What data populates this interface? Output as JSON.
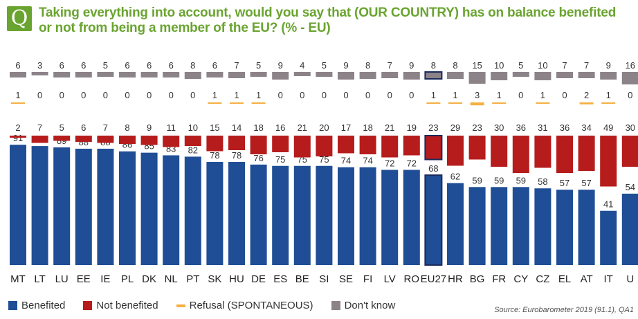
{
  "title": {
    "line1": "Taking everything into account, would you say that (OUR COUNTRY) has on balance benefited",
    "line2": "or not from being a member of the EU? (% - EU)",
    "badge": "Q"
  },
  "colors": {
    "benefited": "#1f4e96",
    "not_benefited": "#b71c1c",
    "refusal": "#f5b041",
    "dont_know": "#8c8389",
    "title": "#6aa430",
    "eu_outline": "#1a2a5c"
  },
  "chart_data": {
    "type": "bar",
    "stacked": true,
    "categories": [
      "MT",
      "LT",
      "LU",
      "EE",
      "IE",
      "PL",
      "DK",
      "NL",
      "PT",
      "SK",
      "HU",
      "DE",
      "ES",
      "BE",
      "SI",
      "SE",
      "FI",
      "LV",
      "RO",
      "EU27",
      "HR",
      "BG",
      "FR",
      "CY",
      "CZ",
      "EL",
      "AT",
      "IT",
      "U"
    ],
    "highlight": "EU27",
    "series": [
      {
        "name": "Benefited",
        "key": "benefited",
        "values": [
          91,
          90,
          89,
          88,
          88,
          86,
          85,
          83,
          82,
          78,
          78,
          76,
          75,
          75,
          75,
          74,
          74,
          72,
          72,
          68,
          62,
          59,
          59,
          59,
          58,
          57,
          57,
          41,
          54
        ]
      },
      {
        "name": "Not benefited",
        "key": "not_benefited",
        "values": [
          2,
          7,
          5,
          6,
          7,
          8,
          9,
          11,
          10,
          15,
          14,
          18,
          16,
          21,
          20,
          17,
          18,
          21,
          19,
          23,
          29,
          23,
          30,
          36,
          31,
          36,
          34,
          49,
          30
        ]
      },
      {
        "name": "Refusal (SPONTANEOUS)",
        "key": "refusal",
        "values": [
          1,
          0,
          0,
          0,
          0,
          0,
          0,
          0,
          0,
          1,
          1,
          1,
          0,
          0,
          0,
          0,
          0,
          0,
          0,
          1,
          1,
          3,
          1,
          0,
          1,
          0,
          2,
          1,
          0
        ]
      },
      {
        "name": "Don't know",
        "key": "dont_know",
        "values": [
          6,
          3,
          6,
          6,
          5,
          6,
          6,
          6,
          8,
          6,
          7,
          5,
          9,
          4,
          5,
          9,
          8,
          7,
          9,
          8,
          8,
          15,
          10,
          5,
          10,
          7,
          7,
          9,
          16
        ]
      }
    ],
    "legend_position": "bottom",
    "grid": false
  },
  "legend": {
    "benefited": "Benefited",
    "not_benefited": "Not benefited",
    "refusal": "Refusal (SPONTANEOUS)",
    "dont_know": "Don't know"
  },
  "source": "Source: Eurobarometer 2019 (91.1), QA1"
}
